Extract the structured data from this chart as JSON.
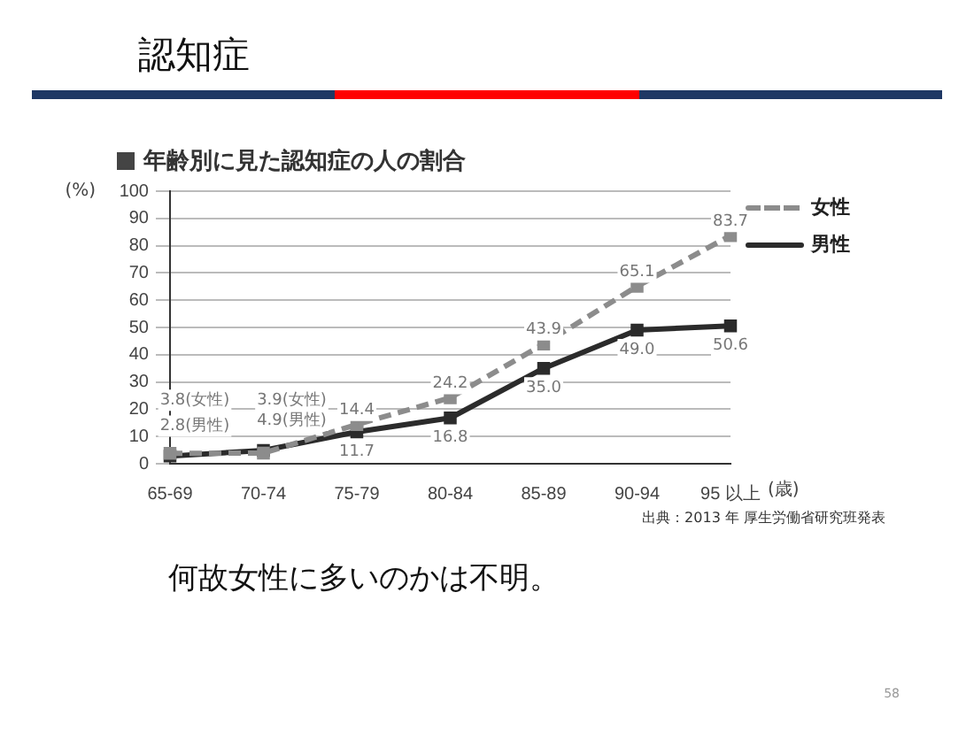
{
  "chart_data": {
    "type": "line",
    "title": "認知症",
    "subtitle": "年齢別に見た認知症の人の割合",
    "ylabel": "(%)",
    "xlabel": "(歳)",
    "categories": [
      "65-69",
      "70-74",
      "75-79",
      "80-84",
      "85-89",
      "90-94",
      "95 以上"
    ],
    "series": [
      {
        "name": "女性",
        "color": "#8c8c8c",
        "line_style": "dashed",
        "values": [
          3.8,
          3.9,
          14.4,
          24.2,
          43.9,
          65.1,
          83.7
        ],
        "value_labels": [
          "3.8(女性)",
          "3.9(女性)",
          "14.4",
          "24.2",
          "43.9",
          "65.1",
          "83.7"
        ]
      },
      {
        "name": "男性",
        "color": "#2b2b2b",
        "line_style": "solid",
        "values": [
          2.8,
          4.9,
          11.7,
          16.8,
          35.0,
          49.0,
          50.6
        ],
        "value_labels": [
          "2.8(男性)",
          "4.9(男性)",
          "11.7",
          "16.8",
          "35.0",
          "49.0",
          "50.6"
        ]
      }
    ],
    "ylim": [
      0,
      100
    ],
    "yticks": [
      0,
      10,
      20,
      30,
      40,
      50,
      60,
      70,
      80,
      90,
      100
    ],
    "grid": "y",
    "legend": "top right",
    "marker": "square",
    "annotations": [
      "出典：2013 年 厚生労働省研究班発表",
      "何故女性に多いのかは不明。",
      "58"
    ]
  }
}
